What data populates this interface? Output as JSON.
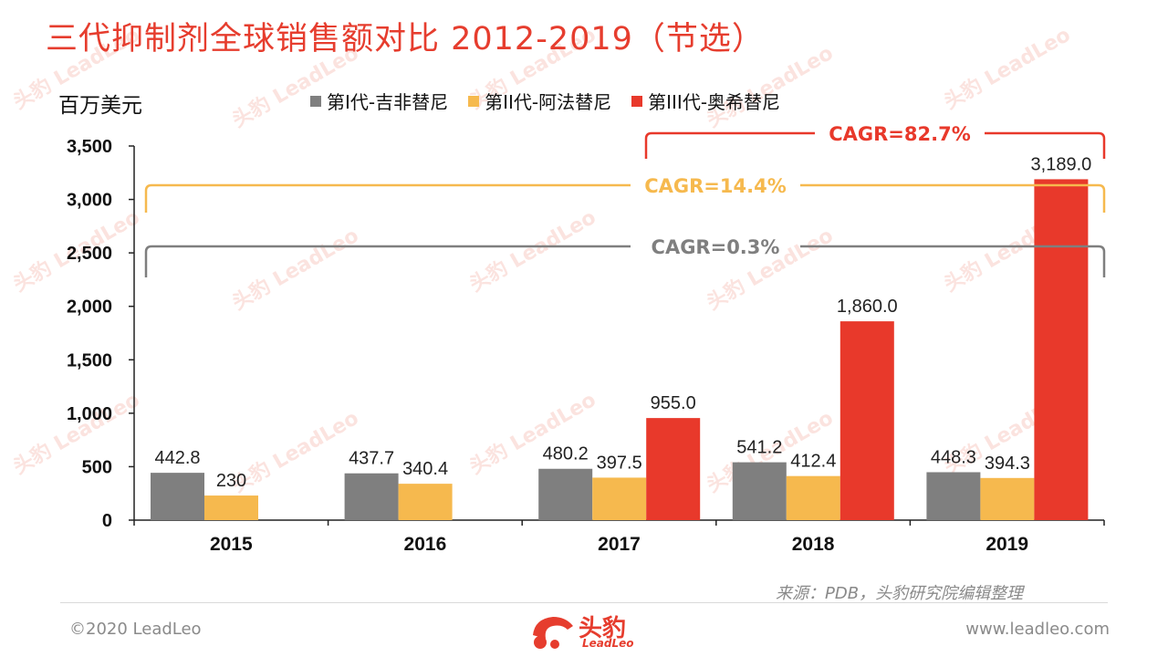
{
  "title": "三代抑制剂全球销售额对比 2012-2019（节选）",
  "ylabel": "百万美元",
  "source": "来源：PDB，头豹研究院编辑整理",
  "copyright": "©2020 LeadLeo",
  "website": "www.leadleo.com",
  "logo": {
    "text": "头豹",
    "sub": "LeadLeo"
  },
  "colors": {
    "gen1": "#7f7f7f",
    "gen2": "#f6b94e",
    "gen3": "#e8392b",
    "title": "#e63d2e"
  },
  "chart_data": {
    "type": "bar",
    "categories": [
      "2015",
      "2016",
      "2017",
      "2018",
      "2019"
    ],
    "series": [
      {
        "name": "第I代-吉非替尼",
        "color": "#7f7f7f",
        "values": [
          442.8,
          437.7,
          480.2,
          541.2,
          448.3
        ],
        "labels": [
          "442.8",
          "437.7",
          "480.2",
          "541.2",
          "448.3"
        ]
      },
      {
        "name": "第II代-阿法替尼",
        "color": "#f6b94e",
        "values": [
          230,
          340.4,
          397.5,
          412.4,
          394.3
        ],
        "labels": [
          "230",
          "340.4",
          "397.5",
          "412.4",
          "394.3"
        ]
      },
      {
        "name": "第III代-奥希替尼",
        "color": "#e8392b",
        "values": [
          null,
          null,
          955.0,
          1860.0,
          3189.0
        ],
        "labels": [
          "",
          "",
          "955.0",
          "1,860.0",
          "3,189.0"
        ]
      }
    ],
    "ylim": [
      0,
      3500
    ],
    "yticks": [
      "0",
      "500",
      "1,000",
      "1,500",
      "2,000",
      "2,500",
      "3,000",
      "3,500"
    ],
    "yticks_values": [
      0,
      500,
      1000,
      1500,
      2000,
      2500,
      3000,
      3500
    ],
    "annotations": [
      {
        "text": "CAGR=82.7%",
        "color": "#e8392b",
        "from": "2017",
        "to": "2019"
      },
      {
        "text": "CAGR=14.4%",
        "color": "#f6b94e",
        "from": "2015",
        "to": "2019"
      },
      {
        "text": "CAGR=0.3%",
        "color": "#7f7f7f",
        "from": "2015",
        "to": "2019"
      }
    ]
  }
}
